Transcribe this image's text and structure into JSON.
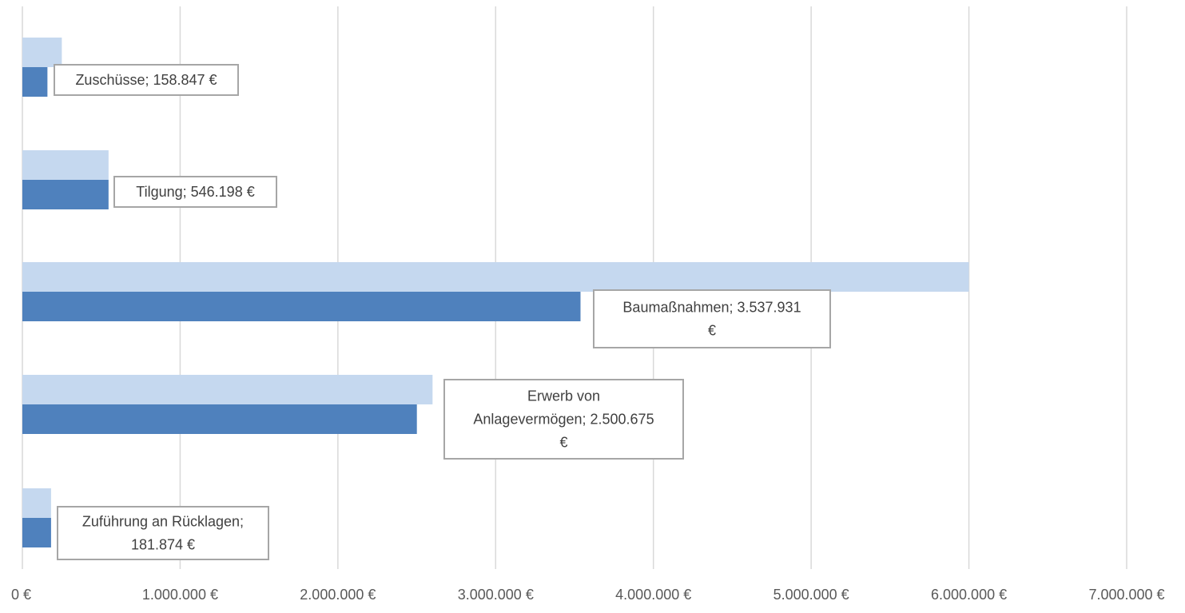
{
  "chart_data": {
    "type": "bar",
    "orientation": "horizontal",
    "categories": [
      "Zuschüsse",
      "Tilgung",
      "Baumaßnahmen",
      "Erwerb von Anlagevermögen",
      "Zuführung an Rücklagen"
    ],
    "series": [
      {
        "values": [
          250000,
          546198,
          6000000,
          2600000,
          181874
        ],
        "color": "#c5d8ef"
      },
      {
        "values": [
          158847,
          546198,
          3537931,
          2500675,
          181874
        ],
        "color": "#4f81bd"
      }
    ],
    "data_labels": [
      [
        "Zuschüsse; 158.847 €"
      ],
      [
        "Tilgung; 546.198 €"
      ],
      [
        "Baumaßnahmen; 3.537.931",
        "€"
      ],
      [
        "Erwerb von",
        "Anlagevermögen; 2.500.675",
        "€"
      ],
      [
        "Zuführung an Rücklagen;",
        "181.874 €"
      ]
    ],
    "x_ticks": [
      "0 €",
      "1.000.000 €",
      "2.000.000 €",
      "3.000.000 €",
      "4.000.000 €",
      "5.000.000 €",
      "6.000.000 €",
      "7.000.000 €"
    ],
    "xlim": [
      0,
      7000000
    ],
    "grid": true,
    "legend": "none"
  }
}
